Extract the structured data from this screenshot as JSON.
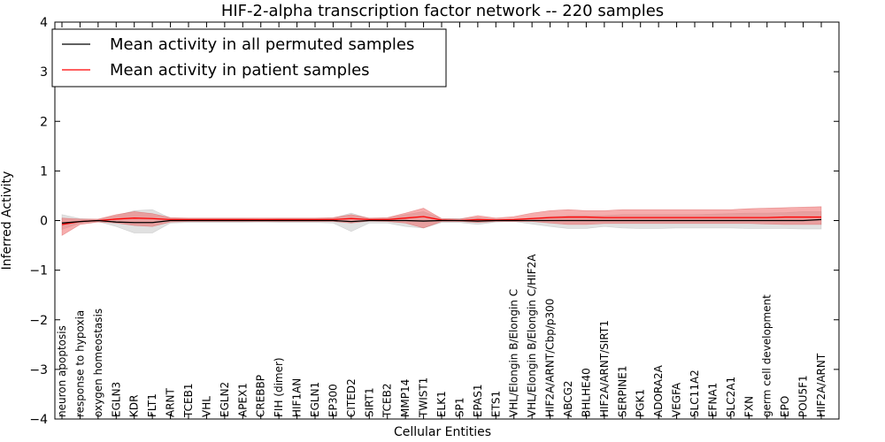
{
  "chart_data": {
    "type": "line",
    "title": "HIF-2-alpha transcription factor network -- 220 samples",
    "xlabel": "Cellular Entities",
    "ylabel": "Inferred Activity",
    "ylim": [
      -4,
      4
    ],
    "yticks": [
      -4,
      -3,
      -2,
      -1,
      0,
      1,
      2,
      3,
      4
    ],
    "ytick_labels": [
      "−4",
      "−3",
      "−2",
      "−1",
      "0",
      "1",
      "2",
      "3",
      "4"
    ],
    "legend_position": "top-left",
    "categories": [
      "neuron apoptosis",
      "response to hypoxia",
      "oxygen homeostasis",
      "EGLN3",
      "KDR",
      "FLT1",
      "ARNT",
      "TCEB1",
      "VHL",
      "EGLN2",
      "APEX1",
      "CREBBP",
      "FIH (dimer)",
      "HIF1AN",
      "EGLN1",
      "EP300",
      "CITED2",
      "SIRT1",
      "TCEB2",
      "MMP14",
      "TWIST1",
      "ELK1",
      "SP1",
      "EPAS1",
      "ETS1",
      "VHL/Elongin B/Elongin C",
      "VHL/Elongin B/Elongin C/HIF2A",
      "HIF2A/ARNT/Cbp/p300",
      "ABCG2",
      "BHLHE40",
      "HIF2A/ARNT/SIRT1",
      "SERPINE1",
      "PGK1",
      "ADORA2A",
      "VEGFA",
      "SLC11A2",
      "EFNA1",
      "SLC2A1",
      "FXN",
      "germ cell development",
      "EPO",
      "POU5F1",
      "HIF2A/ARNT"
    ],
    "series": [
      {
        "name": "Mean activity in all permuted samples",
        "color": "#000000",
        "values": [
          -0.05,
          -0.02,
          0.0,
          -0.03,
          -0.04,
          -0.04,
          0.0,
          0.0,
          0.0,
          0.0,
          0.0,
          0.0,
          0.0,
          0.0,
          0.0,
          0.0,
          -0.02,
          0.0,
          0.0,
          0.0,
          -0.01,
          0.0,
          0.0,
          -0.01,
          0.0,
          0.0,
          0.0,
          0.0,
          0.0,
          0.0,
          0.0,
          0.0,
          0.0,
          0.0,
          0.0,
          0.0,
          0.0,
          0.0,
          0.0,
          0.0,
          0.0,
          0.0,
          0.02
        ],
        "band_low": [
          -0.18,
          -0.05,
          -0.02,
          -0.12,
          -0.25,
          -0.25,
          -0.05,
          -0.04,
          -0.04,
          -0.04,
          -0.04,
          -0.03,
          -0.04,
          -0.04,
          -0.04,
          -0.05,
          -0.22,
          -0.05,
          -0.05,
          -0.12,
          -0.15,
          -0.04,
          -0.04,
          -0.08,
          -0.03,
          -0.02,
          -0.07,
          -0.12,
          -0.16,
          -0.16,
          -0.12,
          -0.15,
          -0.16,
          -0.16,
          -0.15,
          -0.15,
          -0.15,
          -0.15,
          -0.16,
          -0.16,
          -0.16,
          -0.17,
          -0.17
        ],
        "band_high": [
          0.12,
          0.04,
          0.02,
          0.1,
          0.2,
          0.22,
          0.05,
          0.04,
          0.04,
          0.04,
          0.04,
          0.03,
          0.04,
          0.04,
          0.04,
          0.05,
          0.15,
          0.04,
          0.05,
          0.12,
          0.18,
          0.04,
          0.04,
          0.06,
          0.03,
          0.02,
          0.05,
          0.08,
          0.1,
          0.1,
          0.1,
          0.12,
          0.12,
          0.12,
          0.12,
          0.12,
          0.13,
          0.14,
          0.15,
          0.15,
          0.16,
          0.18,
          0.18
        ]
      },
      {
        "name": "Mean activity in patient samples",
        "color": "#ff0000",
        "values": [
          -0.08,
          -0.02,
          0.0,
          0.03,
          0.05,
          0.04,
          0.02,
          0.02,
          0.02,
          0.02,
          0.02,
          0.02,
          0.02,
          0.02,
          0.02,
          0.02,
          0.04,
          0.02,
          0.02,
          0.05,
          0.08,
          0.01,
          0.0,
          0.02,
          0.01,
          0.02,
          0.04,
          0.06,
          0.07,
          0.07,
          0.06,
          0.06,
          0.06,
          0.06,
          0.06,
          0.06,
          0.06,
          0.06,
          0.06,
          0.06,
          0.07,
          0.07,
          0.07
        ],
        "band_low": [
          -0.3,
          -0.08,
          -0.03,
          -0.05,
          -0.1,
          -0.12,
          -0.03,
          -0.02,
          -0.02,
          -0.02,
          -0.02,
          -0.02,
          -0.02,
          -0.02,
          -0.02,
          -0.02,
          -0.05,
          -0.01,
          -0.02,
          -0.05,
          -0.15,
          -0.02,
          -0.02,
          -0.04,
          -0.02,
          -0.02,
          -0.02,
          -0.05,
          -0.08,
          -0.08,
          -0.06,
          -0.06,
          -0.06,
          -0.06,
          -0.06,
          -0.06,
          -0.06,
          -0.06,
          -0.06,
          -0.07,
          -0.08,
          -0.08,
          -0.08
        ],
        "band_high": [
          0.05,
          0.03,
          0.03,
          0.12,
          0.18,
          0.14,
          0.06,
          0.05,
          0.05,
          0.05,
          0.05,
          0.05,
          0.05,
          0.05,
          0.05,
          0.06,
          0.12,
          0.05,
          0.06,
          0.15,
          0.25,
          0.04,
          0.03,
          0.1,
          0.05,
          0.08,
          0.15,
          0.2,
          0.22,
          0.2,
          0.2,
          0.22,
          0.22,
          0.22,
          0.22,
          0.22,
          0.22,
          0.22,
          0.24,
          0.25,
          0.26,
          0.27,
          0.28
        ]
      }
    ]
  }
}
